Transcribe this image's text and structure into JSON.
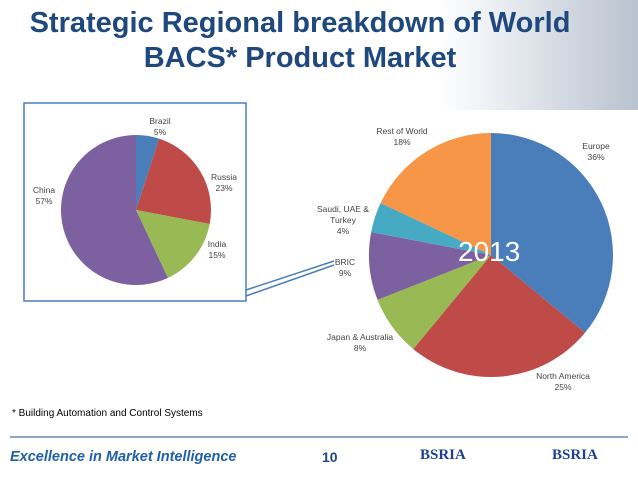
{
  "slide": {
    "title": "Strategic Regional breakdown of World BACS* Product Market",
    "footnote": "* Building Automation and Control Systems",
    "footer": "Excellence in Market Intelligence",
    "page_number": "10",
    "logos": [
      "BSRIA",
      "BSRIA"
    ]
  },
  "chart_data": [
    {
      "type": "pie",
      "annotation": "2013",
      "categories": [
        "Europe",
        "North America",
        "Japan & Australia",
        "BRIC",
        "Saudi, UAE & Turkey",
        "Rest of World"
      ],
      "values": [
        36,
        25,
        8,
        9,
        4,
        18
      ],
      "value_labels": [
        "36%",
        "25%",
        "8%",
        "9%",
        "4%",
        "18%"
      ],
      "colors": [
        "#4a7ebb",
        "#be4b48",
        "#98b954",
        "#7d60a0",
        "#46aac5",
        "#f79646"
      ]
    },
    {
      "type": "pie",
      "categories": [
        "Brazil",
        "Russia",
        "India",
        "China"
      ],
      "values": [
        5,
        23,
        15,
        57
      ],
      "value_labels": [
        "5%",
        "23%",
        "15%",
        "57%"
      ],
      "colors": [
        "#4a7ebb",
        "#be4b48",
        "#98b954",
        "#7d60a0"
      ]
    }
  ]
}
